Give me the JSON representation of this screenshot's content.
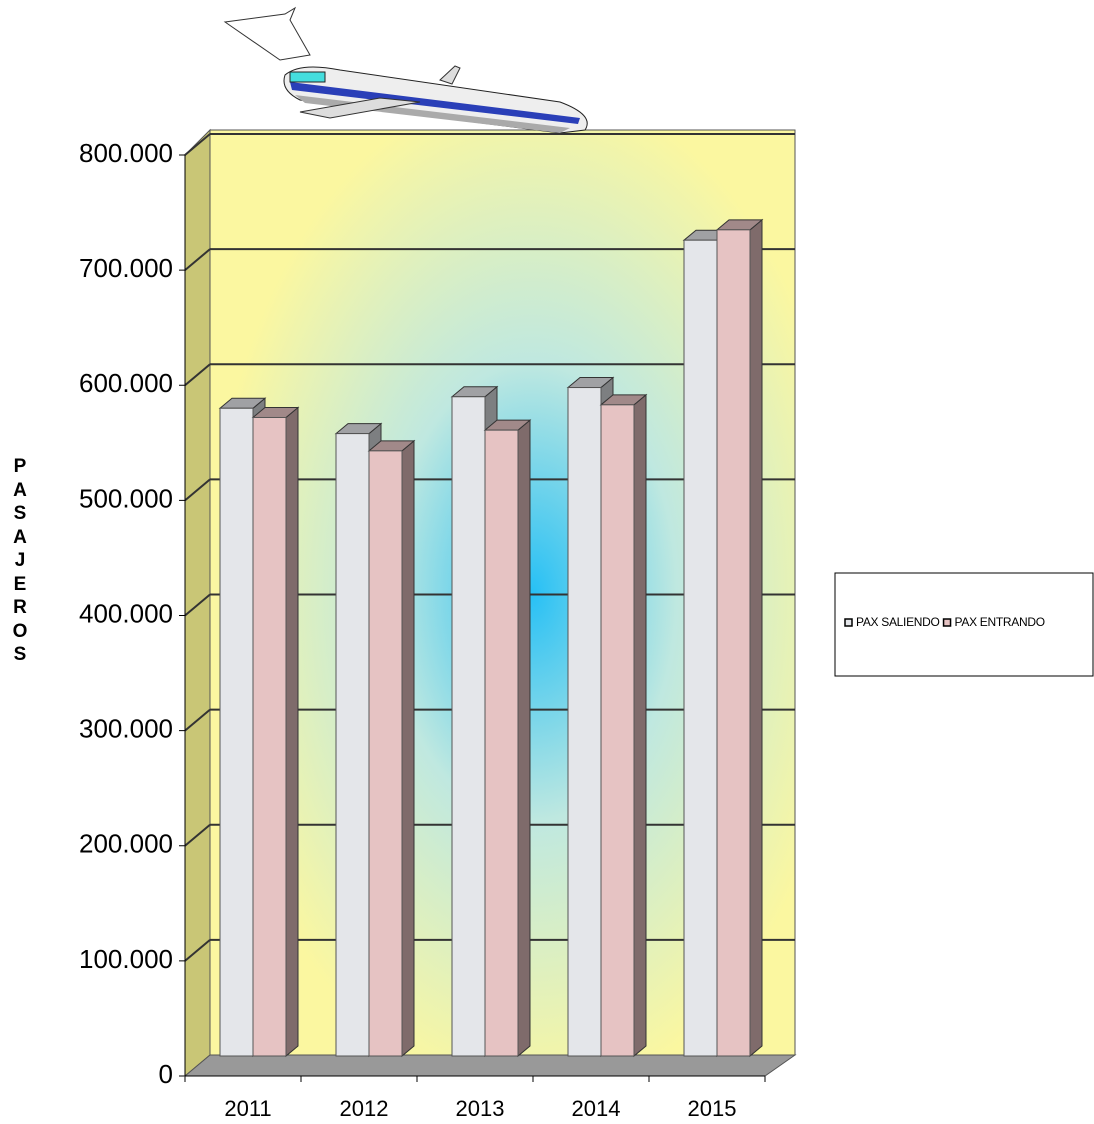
{
  "chart_data": {
    "type": "bar",
    "y_label": "PASAJEROS",
    "categories": [
      "2011",
      "2012",
      "2013",
      "2014",
      "2015"
    ],
    "series": [
      {
        "name": "PAX SALIENDO",
        "color": "#e4e6ea",
        "values": [
          580000,
          558000,
          590000,
          598000,
          726000
        ]
      },
      {
        "name": "PAX ENTRANDO",
        "color": "#e6c3c3",
        "values": [
          572000,
          543000,
          561000,
          583000,
          735000
        ]
      }
    ],
    "ylim": [
      0,
      800000
    ],
    "yticks": [
      0,
      {
        "value": 100000,
        "label": "100.000"
      },
      {
        "value": 200000,
        "label": "200.000"
      },
      {
        "value": 300000,
        "label": "300.000"
      },
      {
        "value": 400000,
        "label": "400.000"
      },
      {
        "value": 500000,
        "label": "500.000"
      },
      {
        "value": 600000,
        "label": "600.000"
      },
      {
        "value": 700000,
        "label": "700.000"
      },
      {
        "value": 800000,
        "label": "800.000"
      }
    ],
    "grid": true,
    "legend": "right"
  }
}
